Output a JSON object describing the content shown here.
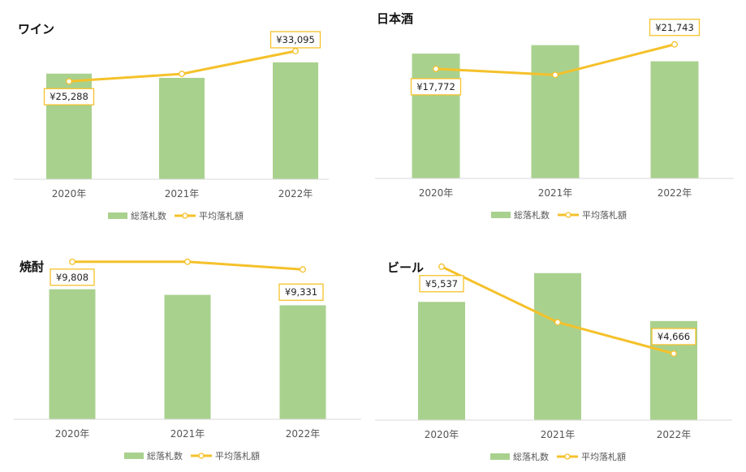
{
  "chart_data": [
    {
      "type": "bar",
      "title": "ワイン",
      "categories": [
        "2020年",
        "2021年",
        "2022年"
      ],
      "bar_name": "総落札数",
      "line_name": "平均落札額",
      "bar_values": [
        150,
        144,
        166
      ],
      "line_values": [
        25288,
        27200,
        33095
      ],
      "line_labels": [
        "¥25,288",
        "",
        "¥33,095"
      ],
      "bar_ylim": [
        0,
        220
      ],
      "line_ylim": [
        0,
        40000
      ],
      "legend": "bottom",
      "colors": {
        "bar": "#a9d18e",
        "line": "#f5c12a",
        "label_border": "#f5c12a",
        "axis": "#d9d9d9"
      }
    },
    {
      "type": "bar",
      "title": "日本酒",
      "categories": [
        "2020年",
        "2021年",
        "2022年"
      ],
      "bar_name": "総落札数",
      "line_name": "平均落札額",
      "bar_values": [
        162,
        173,
        152
      ],
      "line_values": [
        17772,
        16800,
        21743
      ],
      "line_labels": [
        "¥17,772",
        "",
        "¥21,743"
      ],
      "bar_ylim": [
        0,
        200
      ],
      "line_ylim": [
        0,
        25000
      ],
      "legend": "bottom",
      "colors": {
        "bar": "#a9d18e",
        "line": "#f5c12a",
        "label_border": "#f5c12a",
        "axis": "#d9d9d9"
      }
    },
    {
      "type": "bar",
      "title": "焼酎",
      "categories": [
        "2020年",
        "2021年",
        "2022年"
      ],
      "bar_name": "総落札数",
      "line_name": "平均落札額",
      "bar_values": [
        162,
        155,
        142
      ],
      "line_values": [
        9808,
        9810,
        9331
      ],
      "line_labels": [
        "¥9,808",
        "",
        "¥9,331"
      ],
      "bar_ylim": [
        0,
        200
      ],
      "line_ylim": [
        0,
        10000
      ],
      "legend": "bottom",
      "colors": {
        "bar": "#a9d18e",
        "line": "#f5c12a",
        "label_border": "#f5c12a",
        "axis": "#d9d9d9"
      }
    },
    {
      "type": "bar",
      "title": "ビール",
      "categories": [
        "2020年",
        "2021年",
        "2022年"
      ],
      "bar_name": "総落札数",
      "line_name": "平均落札額",
      "bar_values": [
        148,
        184,
        124
      ],
      "line_values": [
        5537,
        4980,
        4666
      ],
      "line_labels": [
        "¥5,537",
        "",
        "¥4,666"
      ],
      "bar_ylim": [
        0,
        200
      ],
      "line_ylim": [
        4000,
        5600
      ],
      "legend": "bottom",
      "colors": {
        "bar": "#a9d18e",
        "line": "#f5c12a",
        "label_border": "#f5c12a",
        "axis": "#d9d9d9"
      }
    }
  ]
}
